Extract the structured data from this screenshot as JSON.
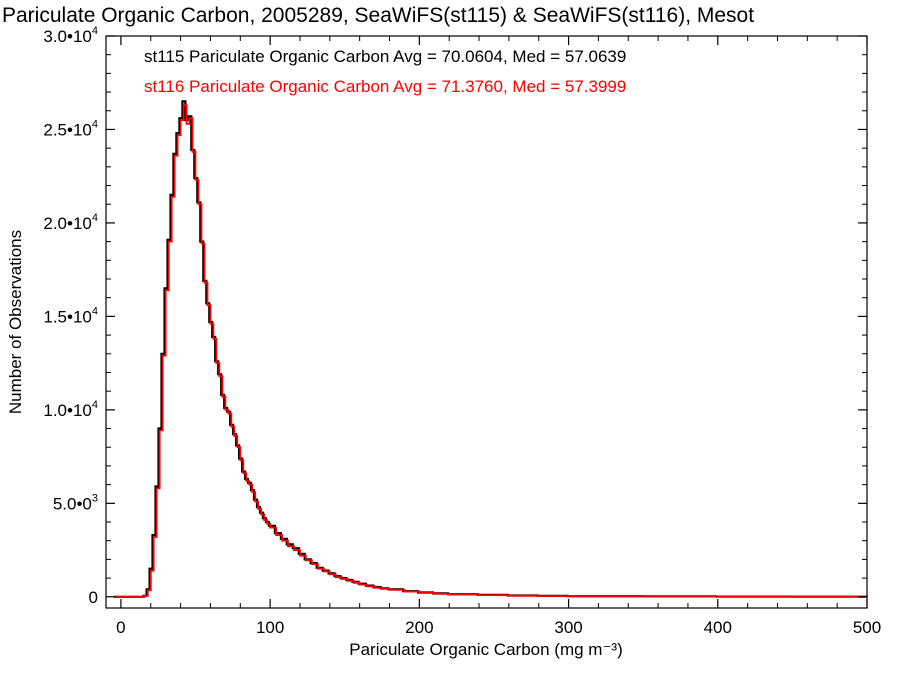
{
  "chart_data": {
    "type": "line",
    "title": "Pariculate Organic Carbon, 2005289, SeaWiFS(st115) & SeaWiFS(st116), Mesot",
    "xlabel": "Pariculate Organic Carbon (mg m⁻³)",
    "ylabel": "Number of Observations",
    "xlim": [
      -10,
      500
    ],
    "ylim": [
      -600,
      30000
    ],
    "grid": false,
    "x_ticks": [
      0,
      100,
      200,
      300,
      400,
      500
    ],
    "x_tick_labels": [
      "0",
      "100",
      "200",
      "300",
      "400",
      "500"
    ],
    "y_ticks": [
      {
        "value": 0,
        "mantissa": "0",
        "exp": ""
      },
      {
        "value": 5000,
        "mantissa": "5.0•0",
        "exp": "3"
      },
      {
        "value": 10000,
        "mantissa": "1.0•10",
        "exp": "4"
      },
      {
        "value": 15000,
        "mantissa": "1.5•10",
        "exp": "4"
      },
      {
        "value": 20000,
        "mantissa": "2.0•10",
        "exp": "4"
      },
      {
        "value": 25000,
        "mantissa": "2.5•10",
        "exp": "4"
      },
      {
        "value": 30000,
        "mantissa": "3.0•10",
        "exp": "4"
      }
    ],
    "annotations": [
      {
        "text": "st115 Pariculate Organic Carbon Avg = 70.0604, Med = 57.0639",
        "color": "#000000"
      },
      {
        "text": "st116 Pariculate Organic Carbon Avg = 71.3760, Med = 57.3999",
        "color": "#ff0000"
      }
    ],
    "x": [
      -4,
      0,
      4,
      8,
      12,
      16,
      18,
      20,
      22,
      24,
      26,
      28,
      30,
      32,
      34,
      36,
      38,
      40,
      42,
      44,
      46,
      48,
      50,
      52,
      54,
      56,
      58,
      60,
      62,
      64,
      66,
      68,
      70,
      72,
      74,
      76,
      78,
      80,
      82,
      84,
      86,
      88,
      90,
      92,
      94,
      96,
      98,
      100,
      104,
      108,
      112,
      116,
      120,
      124,
      128,
      132,
      136,
      140,
      144,
      148,
      152,
      156,
      160,
      165,
      170,
      175,
      180,
      190,
      200,
      210,
      220,
      240,
      260,
      280,
      300,
      350,
      400,
      450,
      500
    ],
    "series": [
      {
        "name": "st115",
        "color": "#000000",
        "values": [
          0,
          0,
          0,
          0,
          0,
          50,
          400,
          1500,
          3300,
          5900,
          9000,
          13000,
          16500,
          19100,
          21500,
          23700,
          24800,
          25600,
          26500,
          25500,
          25700,
          23900,
          22400,
          21100,
          19000,
          16900,
          15700,
          14700,
          13900,
          12600,
          11900,
          10800,
          10100,
          9900,
          9200,
          8700,
          8100,
          7400,
          6700,
          6300,
          6100,
          5700,
          5200,
          4800,
          4500,
          4200,
          4000,
          3800,
          3400,
          3100,
          2800,
          2600,
          2300,
          2000,
          1800,
          1550,
          1400,
          1250,
          1100,
          1000,
          900,
          800,
          700,
          600,
          520,
          450,
          400,
          300,
          230,
          180,
          140,
          100,
          70,
          50,
          30,
          20,
          10,
          5,
          0
        ]
      },
      {
        "name": "st116",
        "color": "#ff0000",
        "values": [
          0,
          0,
          0,
          0,
          0,
          40,
          350,
          1400,
          3200,
          5800,
          8900,
          12900,
          16400,
          19000,
          21400,
          23600,
          24700,
          25500,
          26300,
          25300,
          25600,
          23800,
          22300,
          21000,
          18900,
          16800,
          15600,
          14600,
          13800,
          12500,
          11800,
          10700,
          10000,
          9800,
          9100,
          8600,
          8000,
          7300,
          6600,
          6200,
          6000,
          5600,
          5100,
          4700,
          4400,
          4100,
          3900,
          3700,
          3300,
          3000,
          2700,
          2500,
          2200,
          1950,
          1750,
          1500,
          1350,
          1200,
          1050,
          950,
          850,
          750,
          650,
          560,
          480,
          420,
          370,
          280,
          210,
          160,
          120,
          90,
          60,
          40,
          25,
          15,
          8,
          3,
          0
        ]
      }
    ]
  }
}
